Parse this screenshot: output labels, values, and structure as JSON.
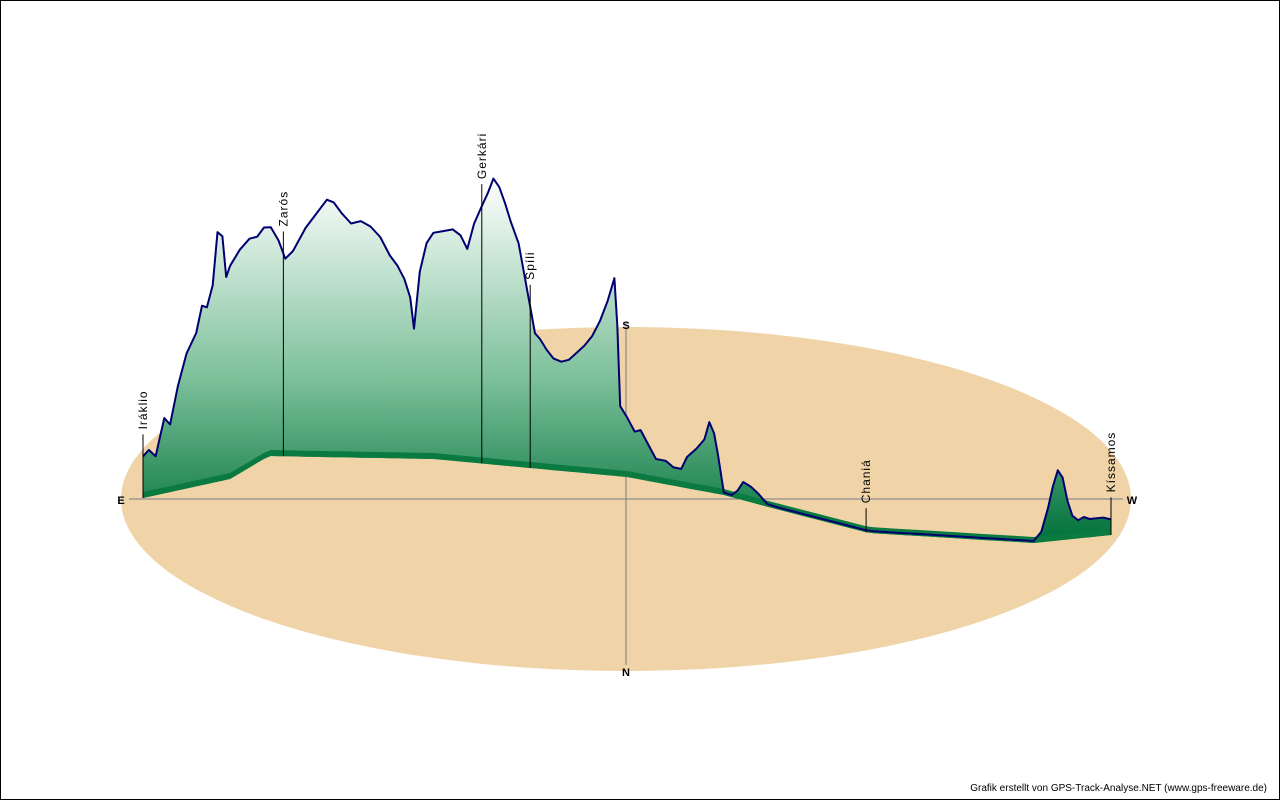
{
  "credit": "Grafik erstellt von GPS-Track-Analyse.NET (www.gps-freeware.de)",
  "colors": {
    "ellipse": "#f0d4a8",
    "profile_top": "#ffffff",
    "profile_bottom": "#00703a",
    "profile_line": "#000070",
    "axis": "#7a7a88"
  },
  "chart_data": {
    "type": "area",
    "compass": {
      "east": "E",
      "west": "W",
      "north": "N",
      "south": "S"
    },
    "places": [
      {
        "name": "Iráklio",
        "t": 0.0
      },
      {
        "name": "Zarós",
        "t": 0.145
      },
      {
        "name": "Gerkári",
        "t": 0.35
      },
      {
        "name": "Spíli",
        "t": 0.4
      },
      {
        "name": "Chaniá",
        "t": 0.747
      },
      {
        "name": "Kíssamos",
        "t": 1.0
      }
    ],
    "profile": [
      [
        0.0,
        0.4
      ],
      [
        0.006,
        0.5
      ],
      [
        0.013,
        0.35
      ],
      [
        0.022,
        1.05
      ],
      [
        0.028,
        0.9
      ],
      [
        0.036,
        1.6
      ],
      [
        0.045,
        2.2
      ],
      [
        0.055,
        2.55
      ],
      [
        0.061,
        3.05
      ],
      [
        0.066,
        3.0
      ],
      [
        0.072,
        3.4
      ],
      [
        0.077,
        4.4
      ],
      [
        0.082,
        4.3
      ],
      [
        0.086,
        3.5
      ],
      [
        0.09,
        3.7
      ],
      [
        0.1,
        3.9
      ],
      [
        0.11,
        4.0
      ],
      [
        0.118,
        3.95
      ],
      [
        0.125,
        4.05
      ],
      [
        0.132,
        4.0
      ],
      [
        0.14,
        3.75
      ],
      [
        0.147,
        3.4
      ],
      [
        0.155,
        3.55
      ],
      [
        0.168,
        4.0
      ],
      [
        0.18,
        4.3
      ],
      [
        0.19,
        4.55
      ],
      [
        0.197,
        4.5
      ],
      [
        0.205,
        4.3
      ],
      [
        0.215,
        4.1
      ],
      [
        0.225,
        4.15
      ],
      [
        0.235,
        4.05
      ],
      [
        0.245,
        3.85
      ],
      [
        0.255,
        3.5
      ],
      [
        0.263,
        3.3
      ],
      [
        0.27,
        3.05
      ],
      [
        0.276,
        2.7
      ],
      [
        0.28,
        2.1
      ],
      [
        0.286,
        3.2
      ],
      [
        0.293,
        3.75
      ],
      [
        0.3,
        3.95
      ],
      [
        0.31,
        4.0
      ],
      [
        0.32,
        4.05
      ],
      [
        0.328,
        3.95
      ],
      [
        0.335,
        3.7
      ],
      [
        0.342,
        4.2
      ],
      [
        0.35,
        4.55
      ],
      [
        0.356,
        4.8
      ],
      [
        0.362,
        5.1
      ],
      [
        0.368,
        4.95
      ],
      [
        0.374,
        4.65
      ],
      [
        0.38,
        4.3
      ],
      [
        0.388,
        3.9
      ],
      [
        0.394,
        3.3
      ],
      [
        0.4,
        2.7
      ],
      [
        0.405,
        2.2
      ],
      [
        0.41,
        2.1
      ],
      [
        0.417,
        1.9
      ],
      [
        0.424,
        1.75
      ],
      [
        0.432,
        1.7
      ],
      [
        0.44,
        1.75
      ],
      [
        0.448,
        1.9
      ],
      [
        0.456,
        2.05
      ],
      [
        0.464,
        2.25
      ],
      [
        0.472,
        2.55
      ],
      [
        0.48,
        2.95
      ],
      [
        0.487,
        3.4
      ],
      [
        0.49,
        2.5
      ],
      [
        0.493,
        0.95
      ],
      [
        0.5,
        0.75
      ],
      [
        0.508,
        0.5
      ],
      [
        0.514,
        0.55
      ],
      [
        0.522,
        0.3
      ],
      [
        0.53,
        0.05
      ],
      [
        0.54,
        0.05
      ],
      [
        0.548,
        -0.05
      ],
      [
        0.556,
        -0.05
      ],
      [
        0.562,
        0.2
      ],
      [
        0.572,
        0.4
      ],
      [
        0.58,
        0.6
      ],
      [
        0.585,
        0.95
      ],
      [
        0.59,
        0.75
      ],
      [
        0.594,
        0.35
      ],
      [
        0.6,
        -0.35
      ],
      [
        0.608,
        -0.45
      ],
      [
        0.614,
        -0.25
      ],
      [
        0.62,
        -0.05
      ],
      [
        0.628,
        -0.1
      ],
      [
        0.636,
        -0.2
      ],
      [
        0.645,
        -0.35
      ],
      [
        0.656,
        -0.4
      ],
      [
        0.668,
        -0.45
      ],
      [
        0.68,
        -0.45
      ],
      [
        0.69,
        -0.5
      ],
      [
        0.7,
        -0.5
      ],
      [
        0.71,
        -0.55
      ],
      [
        0.72,
        -0.5
      ],
      [
        0.73,
        -0.55
      ],
      [
        0.74,
        -0.55
      ],
      [
        0.747,
        -0.5
      ],
      [
        0.755,
        -0.55
      ],
      [
        0.765,
        -0.5
      ],
      [
        0.775,
        -0.55
      ],
      [
        0.79,
        -0.55
      ],
      [
        0.8,
        -0.45
      ],
      [
        0.815,
        -0.5
      ],
      [
        0.825,
        -0.45
      ],
      [
        0.84,
        -0.45
      ],
      [
        0.85,
        -0.5
      ],
      [
        0.86,
        -0.45
      ],
      [
        0.87,
        -0.5
      ],
      [
        0.88,
        -0.5
      ],
      [
        0.89,
        -0.45
      ],
      [
        0.9,
        -0.5
      ],
      [
        0.91,
        -0.45
      ],
      [
        0.92,
        -0.4
      ],
      [
        0.928,
        -0.2
      ],
      [
        0.935,
        0.25
      ],
      [
        0.94,
        0.65
      ],
      [
        0.945,
        0.95
      ],
      [
        0.95,
        0.8
      ],
      [
        0.955,
        0.35
      ],
      [
        0.96,
        0.05
      ],
      [
        0.966,
        -0.05
      ],
      [
        0.972,
        0.0
      ],
      [
        0.978,
        -0.05
      ],
      [
        0.985,
        -0.05
      ],
      [
        0.992,
        -0.05
      ],
      [
        1.0,
        -0.1
      ]
    ]
  }
}
